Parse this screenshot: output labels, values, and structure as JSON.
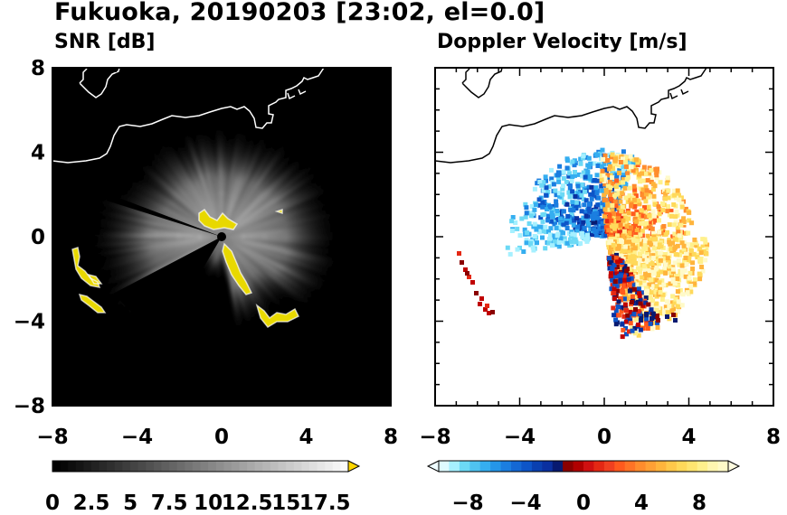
{
  "title": "Fukuoka, 20190203 [23:02, el=0.0]",
  "chart_data": [
    {
      "type": "heatmap",
      "title": "SNR [dB]",
      "x_ticks": [
        "−8",
        "−4",
        "0",
        "4",
        "8"
      ],
      "y_ticks": [
        "8",
        "4",
        "0",
        "−4",
        "−8"
      ],
      "xlim": [
        -8,
        8
      ],
      "ylim": [
        -8,
        8
      ],
      "colorbar": {
        "range": [
          0,
          19
        ],
        "labels": [
          "0",
          "2.5",
          "5",
          "7.5",
          "10",
          "12.5",
          "15",
          "17.5"
        ],
        "extend_color": "#ffd700",
        "colormap": "grayscale black-to-white, over-range yellow"
      },
      "background": "#000000"
    },
    {
      "type": "heatmap",
      "title": "Doppler Velocity [m/s]",
      "x_ticks": [
        "−8",
        "−4",
        "0",
        "4",
        "8"
      ],
      "y_ticks": [
        "8",
        "4",
        "0",
        "−4",
        "−8"
      ],
      "xlim": [
        -8,
        8
      ],
      "ylim": [
        -8,
        8
      ],
      "colorbar": {
        "range": [
          -10,
          10
        ],
        "labels": [
          "−8",
          "−4",
          "0",
          "4",
          "8"
        ],
        "colormap": "cyan-blue-navy for negative, dark red-red-orange-yellow-cream for positive"
      },
      "background": "#ffffff"
    }
  ]
}
